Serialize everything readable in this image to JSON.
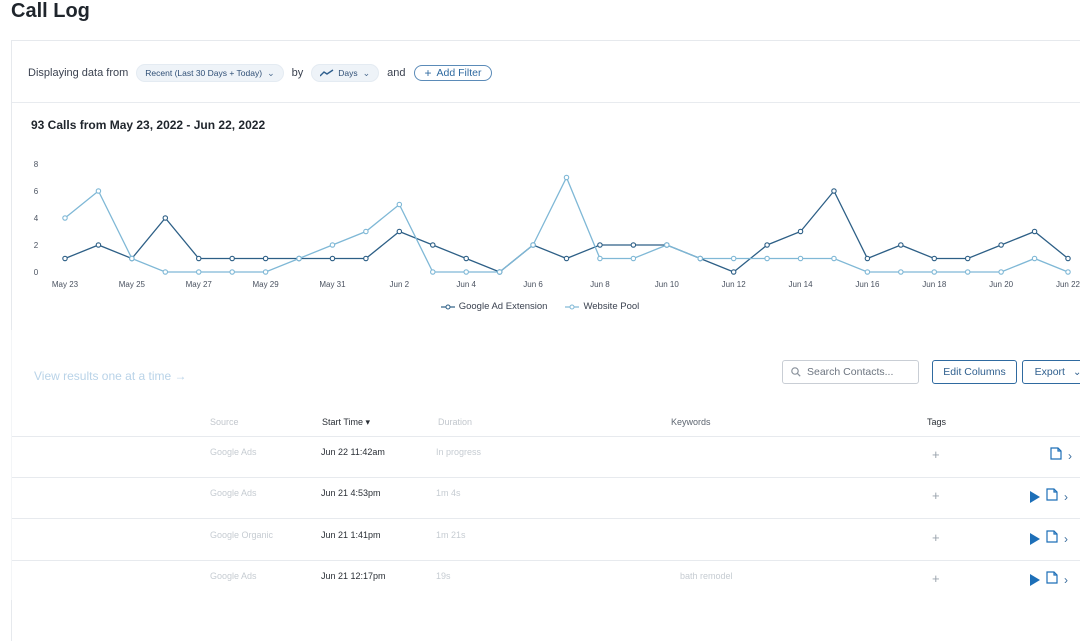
{
  "page": {
    "title": "Call Log"
  },
  "filters": {
    "prefix": "Displaying data from",
    "range_label": "Recent (Last 30 Days + Today)",
    "by_text": "by",
    "granularity_label": "Days",
    "and_text": "and",
    "add_filter_label": "Add Filter"
  },
  "summary": {
    "text": "93 Calls from May 23, 2022 - Jun 22, 2022"
  },
  "chart_data": {
    "type": "line",
    "x": [
      "May 23",
      "May 24",
      "May 25",
      "May 26",
      "May 27",
      "May 28",
      "May 29",
      "May 30",
      "May 31",
      "Jun 1",
      "Jun 2",
      "Jun 3",
      "Jun 4",
      "Jun 5",
      "Jun 6",
      "Jun 7",
      "Jun 8",
      "Jun 9",
      "Jun 10",
      "Jun 11",
      "Jun 12",
      "Jun 13",
      "Jun 14",
      "Jun 15",
      "Jun 16",
      "Jun 17",
      "Jun 18",
      "Jun 19",
      "Jun 20",
      "Jun 21",
      "Jun 22"
    ],
    "xticks": [
      "May 23",
      "May 25",
      "May 27",
      "May 29",
      "May 31",
      "Jun 2",
      "Jun 4",
      "Jun 6",
      "Jun 8",
      "Jun 10",
      "Jun 12",
      "Jun 14",
      "Jun 16",
      "Jun 18",
      "Jun 20",
      "Jun 22"
    ],
    "yticks": [
      0,
      2,
      4,
      6,
      8
    ],
    "ylim": [
      0,
      8
    ],
    "series": [
      {
        "name": "Google Ad Extension",
        "color": "#2d5f86",
        "values": [
          1,
          2,
          1,
          4,
          1,
          1,
          1,
          1,
          1,
          1,
          3,
          2,
          1,
          0,
          2,
          1,
          2,
          2,
          2,
          1,
          0,
          2,
          3,
          6,
          1,
          2,
          1,
          1,
          2,
          3,
          1
        ]
      },
      {
        "name": "Website Pool",
        "color": "#7fb8d6",
        "values": [
          4,
          6,
          1,
          0,
          0,
          0,
          0,
          1,
          2,
          3,
          5,
          0,
          0,
          0,
          2,
          7,
          1,
          1,
          2,
          1,
          1,
          1,
          1,
          1,
          0,
          0,
          0,
          0,
          0,
          1,
          0
        ]
      }
    ],
    "grid": false,
    "legend": "bottom-center"
  },
  "table": {
    "view_one_label": "View results one at a time →",
    "search_placeholder": "Search Contacts...",
    "edit_columns_label": "Edit Columns",
    "export_label": "Export",
    "headers": {
      "source": "Source",
      "start_time": "Start Time ▾",
      "duration": "Duration",
      "keywords": "Keywords",
      "tags": "Tags"
    },
    "rows": [
      {
        "source": "Google Ads",
        "start": "Jun 22 11:42am",
        "duration": "In progress",
        "keywords": "",
        "has_play": false
      },
      {
        "source": "Google Ads",
        "start": "Jun 21 4:53pm",
        "duration": "1m 4s",
        "keywords": "",
        "has_play": true
      },
      {
        "source": "Google Organic",
        "start": "Jun 21 1:41pm",
        "duration": "1m 21s",
        "keywords": "",
        "has_play": true
      },
      {
        "source": "Google Ads",
        "start": "Jun 21 12:17pm",
        "duration": "19s",
        "keywords": "bath remodel",
        "has_play": true
      }
    ]
  }
}
